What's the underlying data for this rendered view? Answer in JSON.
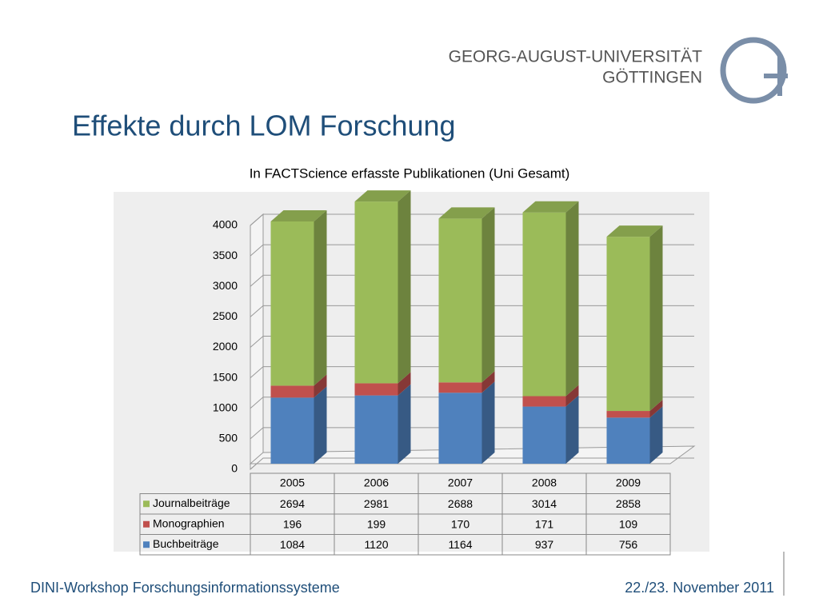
{
  "header": {
    "university": "GEORG-AUGUST-UNIVERSITÄT",
    "city": "GÖTTINGEN"
  },
  "slide_title": "Effekte durch LOM Forschung",
  "footer": {
    "left": "DINI-Workshop Forschungsinformationssysteme",
    "right": "22./23. November 2011"
  },
  "chart_data": {
    "type": "bar3d_stacked",
    "title": "In FACTScience erfasste Publikationen (Uni Gesamt)",
    "categories": [
      "2005",
      "2006",
      "2007",
      "2008",
      "2009"
    ],
    "series": [
      {
        "name": "Journalbeiträge",
        "color": "#9bbb59",
        "values": [
          2694,
          2981,
          2688,
          3014,
          2858
        ]
      },
      {
        "name": "Monographien",
        "color": "#c0504d",
        "values": [
          196,
          199,
          170,
          171,
          109
        ]
      },
      {
        "name": "Buchbeiträge",
        "color": "#4f81bd",
        "values": [
          1084,
          1120,
          1164,
          937,
          756
        ]
      }
    ],
    "stack_order": "bottom-up from last series",
    "ylim": [
      0,
      4000
    ],
    "yticks": [
      0,
      500,
      1000,
      1500,
      2000,
      2500,
      3000,
      3500,
      4000
    ],
    "grid": true
  }
}
